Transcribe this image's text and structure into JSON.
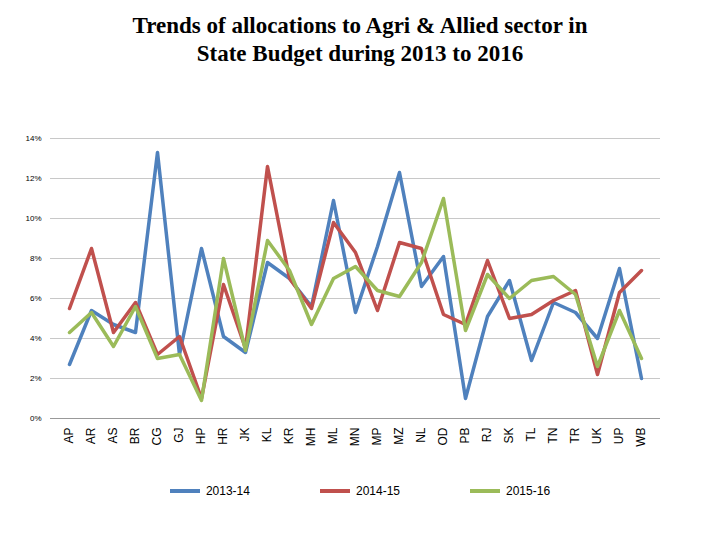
{
  "chart_data": {
    "type": "line",
    "title": "Trends of allocations to Agri & Allied sector in State Budget during 2013 to 2016",
    "categories": [
      "AP",
      "AR",
      "AS",
      "BR",
      "CG",
      "GJ",
      "HP",
      "HR",
      "JK",
      "KL",
      "KR",
      "MH",
      "ML",
      "MN",
      "MP",
      "MZ",
      "NL",
      "OD",
      "PB",
      "RJ",
      "SK",
      "TL",
      "TN",
      "TR",
      "UK",
      "UP",
      "WB"
    ],
    "series": [
      {
        "name": "2013-14",
        "color": "#4f81bd",
        "values": [
          2.7,
          5.4,
          4.7,
          4.3,
          13.3,
          3.2,
          8.5,
          4.1,
          3.3,
          7.8,
          7.0,
          5.6,
          10.9,
          5.3,
          8.6,
          12.3,
          6.6,
          8.1,
          1.0,
          5.1,
          6.9,
          2.9,
          5.8,
          5.3,
          4.0,
          7.5,
          2.0
        ]
      },
      {
        "name": "2014-15",
        "color": "#c0504d",
        "values": [
          5.5,
          8.5,
          4.3,
          5.8,
          3.2,
          4.1,
          1.0,
          6.7,
          3.5,
          12.6,
          7.0,
          5.5,
          9.8,
          8.3,
          5.4,
          8.8,
          8.5,
          5.2,
          4.7,
          7.9,
          5.0,
          5.2,
          5.9,
          6.4,
          2.2,
          6.3,
          7.4
        ]
      },
      {
        "name": "2015-16",
        "color": "#9bbb59",
        "values": [
          4.3,
          5.3,
          3.6,
          5.6,
          3.0,
          3.2,
          0.9,
          8.0,
          3.4,
          8.9,
          7.4,
          4.7,
          7.0,
          7.6,
          6.4,
          6.1,
          7.8,
          11.0,
          4.4,
          7.2,
          6.0,
          6.9,
          7.1,
          6.2,
          2.6,
          5.4,
          3.0
        ]
      }
    ],
    "ylim": [
      0,
      14
    ],
    "yticks": [
      {
        "value": 0,
        "label": "0%"
      },
      {
        "value": 2,
        "label": "2%"
      },
      {
        "value": 4,
        "label": "4%"
      },
      {
        "value": 6,
        "label": "6%"
      },
      {
        "value": 8,
        "label": "8%"
      },
      {
        "value": 10,
        "label": "10%"
      },
      {
        "value": 12,
        "label": "12%"
      },
      {
        "value": 14,
        "label": "14%"
      }
    ],
    "grid": true,
    "legend": "bottom"
  }
}
